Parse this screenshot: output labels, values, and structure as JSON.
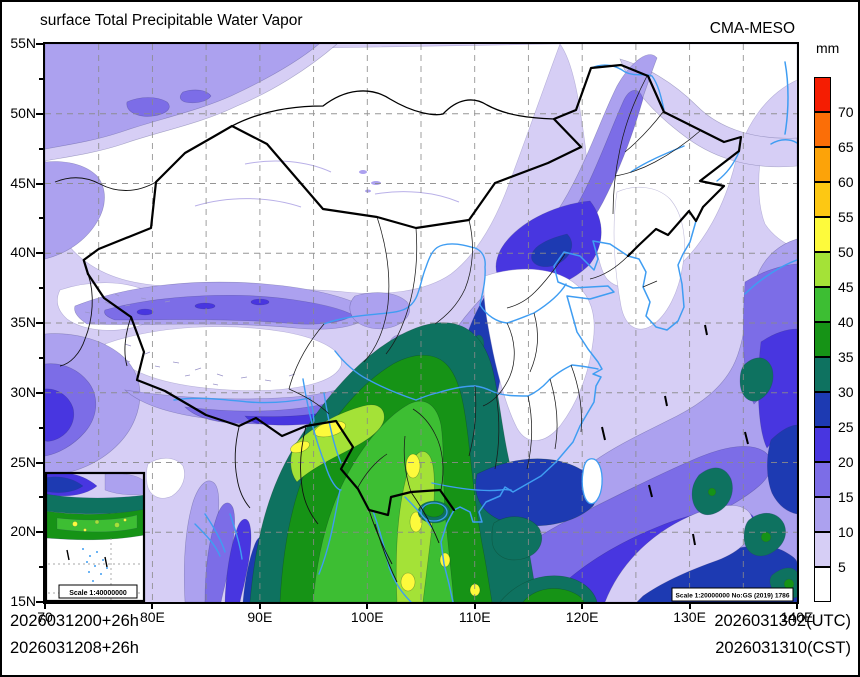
{
  "header": {
    "title": "surface Total Precipitable Water Vapor",
    "model": "CMA-MESO"
  },
  "colorbar": {
    "unit": "mm",
    "tick_labels": [
      "70",
      "65",
      "60",
      "55",
      "50",
      "45",
      "40",
      "35",
      "30",
      "25",
      "20",
      "15",
      "10",
      "5"
    ],
    "segment_colors_top_to_bottom": [
      "#f51d02",
      "#fb6e07",
      "#fca309",
      "#fdc813",
      "#fdfa3c",
      "#a4e237",
      "#3dbe33",
      "#169316",
      "#0e7260",
      "#1d3ab2",
      "#4836e0",
      "#7c6de7",
      "#aca1ef",
      "#d6cef5",
      "#ffffff"
    ]
  },
  "palette": {
    "lt5": "#ffffff",
    "g5": "#d6cef5",
    "g10": "#aca1ef",
    "g15": "#7c6de7",
    "g20": "#4836e0",
    "g25": "#1d3ab2",
    "g30": "#0e7260",
    "g35": "#169316",
    "g40": "#3dbe33",
    "g45": "#a4e237",
    "g50": "#fdfa3c",
    "g55": "#fdc813",
    "g60": "#fca309",
    "g65": "#fb6e07",
    "g70": "#f51d02"
  },
  "map_colors": {
    "border": "#000000",
    "province": "#1a1a1a",
    "foreign": "#111111",
    "river": "#3f9df2",
    "coast": "#3f9df2",
    "grid": "#8a8a8a",
    "speckle": "#9a94c8",
    "faint": "#b9b0e8"
  },
  "axes": {
    "lat_labels": [
      "55N",
      "50N",
      "45N",
      "40N",
      "35N",
      "30N",
      "25N",
      "20N",
      "15N"
    ],
    "lon_labels": [
      "70",
      "80E",
      "90E",
      "100E",
      "110E",
      "120E",
      "130E",
      "140E"
    ]
  },
  "footer": {
    "left_line1": "2026031200+26h",
    "left_line2": "2026031208+26h",
    "right_line1": "2026031302(UTC)",
    "right_line2": "2026031310(CST)"
  },
  "scales": {
    "inset_label": "Scale 1:40000000",
    "main_label": "Scale 1:20000000 No:GS (2019) 1786"
  }
}
